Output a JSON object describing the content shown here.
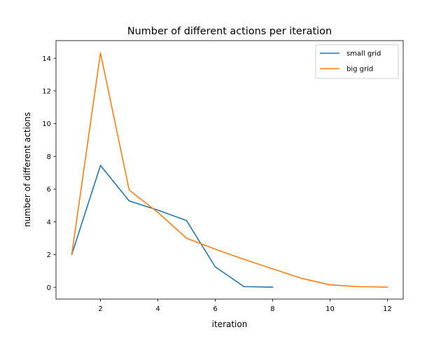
{
  "chart_data": {
    "type": "line",
    "title": "Number of different actions per iteration",
    "xlabel": "iteration",
    "ylabel": "number of different actions",
    "xlim": [
      0.45,
      12.55
    ],
    "ylim": [
      -0.72,
      15.08
    ],
    "xticks": [
      2,
      4,
      6,
      8,
      10,
      12
    ],
    "yticks": [
      0,
      2,
      4,
      6,
      8,
      10,
      12,
      14
    ],
    "grid": false,
    "legend_position": "upper right",
    "series": [
      {
        "name": "small grid",
        "color": "#1f77b4",
        "x": [
          1,
          2,
          3,
          4,
          5,
          6,
          7,
          8
        ],
        "values": [
          2.0,
          7.45,
          5.28,
          4.72,
          4.08,
          1.25,
          0.04,
          0.01
        ]
      },
      {
        "name": "big grid",
        "color": "#ff7f0e",
        "x": [
          1,
          2,
          3,
          4,
          5,
          6,
          7,
          8,
          9,
          10,
          11,
          12
        ],
        "values": [
          2.0,
          14.33,
          5.95,
          4.58,
          3.0,
          2.33,
          1.71,
          1.13,
          0.55,
          0.15,
          0.04,
          0.01
        ]
      }
    ]
  }
}
